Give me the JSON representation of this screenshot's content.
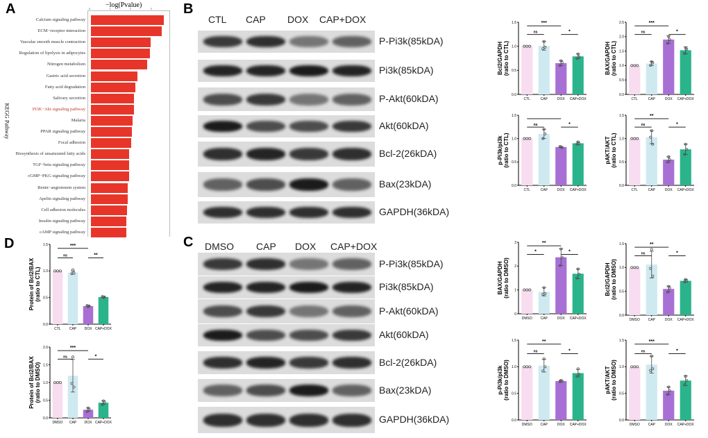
{
  "panels": {
    "a": "A",
    "b": "B",
    "c": "C",
    "d": "D"
  },
  "chart_data": [
    {
      "id": "kegg",
      "type": "bar",
      "orientation": "horizontal",
      "title": "−log(Pvalue)",
      "ylabel": "KEGG Pathway",
      "highlight": "PI3K−Akt signaling pathway",
      "xlim": [
        0,
        3.7
      ],
      "categories": [
        "Calcium signaling pathway",
        "ECM−receptor interaction",
        "Vascular smooth muscle contraction",
        "Regulation of lipolysis in adipocytes",
        "Nitrogen metabolism",
        "Gastric acid secretion",
        "Fatty acid degradation",
        "Salivary secretion",
        "PI3K−Akt signaling pathway",
        "Malaria",
        "PPAR signaling pathway",
        "Focal adhesion",
        "Biosynthesis of unsaturated fatty acids",
        "TGF−beta signaling pathway",
        "cGMP−PKG signaling pathway",
        "Renin−angiotensin system",
        "Apelin signaling pathway",
        "Cell adhesion molecules",
        "Insulin signaling pathway",
        "cAMP signaling pathway"
      ],
      "values": [
        3.6,
        3.5,
        2.95,
        2.9,
        2.79,
        2.3,
        2.19,
        2.13,
        2.11,
        2.07,
        2.01,
        1.98,
        1.89,
        1.88,
        1.87,
        1.81,
        1.81,
        1.79,
        1.75,
        1.74
      ],
      "color": "#e8352a"
    },
    {
      "id": "b1",
      "type": "bar",
      "ylabel": [
        "Bcl2/GAPDH",
        "(ratio to CTL)"
      ],
      "categories": [
        "CTL",
        "CAP",
        "DOX",
        "CAP+DOX"
      ],
      "values": [
        1.0,
        1.01,
        0.65,
        0.79
      ],
      "err": [
        0,
        0.09,
        0.05,
        0.05
      ],
      "points": [
        [
          1,
          1,
          1
        ],
        [
          1.1,
          0.95,
          0.98
        ],
        [
          0.7,
          0.6,
          0.66
        ],
        [
          0.84,
          0.75,
          0.78
        ]
      ],
      "ylim": [
        0,
        1.5
      ],
      "ticks": [
        "0.0",
        "0.5",
        "1.0",
        "1.5"
      ],
      "sig": [
        {
          "pair": [
            0,
            1
          ],
          "label": "ns"
        },
        {
          "pair": [
            0,
            2
          ],
          "label": "***"
        },
        {
          "pair": [
            2,
            3
          ],
          "label": "*"
        }
      ]
    },
    {
      "id": "b2",
      "type": "bar",
      "ylabel": [
        "BAX/GAPDH",
        "(ratio to CTL)"
      ],
      "categories": [
        "CTL",
        "CAP",
        "DOX",
        "CAP+DOX"
      ],
      "values": [
        1.0,
        1.07,
        1.9,
        1.53
      ],
      "err": [
        0,
        0.07,
        0.13,
        0.12
      ],
      "points": [
        [
          1,
          1,
          1
        ],
        [
          1.13,
          1.01,
          1.09
        ],
        [
          2.0,
          1.77,
          1.9
        ],
        [
          1.6,
          1.42,
          1.57
        ]
      ],
      "ylim": [
        0,
        2.5
      ],
      "ticks": [
        "0.0",
        "0.5",
        "1.0",
        "1.5",
        "2.0",
        "2.5"
      ],
      "sig": [
        {
          "pair": [
            0,
            1
          ],
          "label": "ns"
        },
        {
          "pair": [
            0,
            2
          ],
          "label": "***"
        },
        {
          "pair": [
            2,
            3
          ],
          "label": "*"
        }
      ]
    },
    {
      "id": "b3",
      "type": "bar",
      "ylabel": [
        "p-Pi3k/pi3k",
        "(ratio to CTL)"
      ],
      "categories": [
        "CTL",
        "CAP",
        "DOX",
        "CAP+DOX"
      ],
      "values": [
        1.0,
        1.1,
        0.82,
        0.9
      ],
      "err": [
        0,
        0.1,
        0.01,
        0.03
      ],
      "points": [
        [
          1,
          1,
          1
        ],
        [
          1.2,
          1.0,
          1.1
        ],
        [
          0.82,
          0.83,
          0.81
        ],
        [
          0.93,
          0.88,
          0.89
        ]
      ],
      "ylim": [
        0,
        1.5
      ],
      "ticks": [
        "0.0",
        "0.5",
        "1.0",
        "1.5"
      ],
      "sig": [
        {
          "pair": [
            0,
            1
          ],
          "label": "ns"
        },
        {
          "pair": [
            0,
            2
          ],
          "label": ""
        },
        {
          "pair": [
            2,
            3
          ],
          "label": "*"
        }
      ]
    },
    {
      "id": "b4",
      "type": "bar",
      "ylabel": [
        "pAKT/AKT",
        "(ratio to CTL)"
      ],
      "categories": [
        "CTL",
        "CAP",
        "DOX",
        "CAP+DOX"
      ],
      "values": [
        1.0,
        1.03,
        0.55,
        0.77
      ],
      "err": [
        0,
        0.14,
        0.06,
        0.11
      ],
      "points": [
        [
          1,
          1,
          1
        ],
        [
          1.17,
          1.03,
          0.88
        ],
        [
          0.61,
          0.5,
          0.55
        ],
        [
          0.88,
          0.66,
          0.77
        ]
      ],
      "ylim": [
        0,
        1.5
      ],
      "ticks": [
        "0.0",
        "0.5",
        "1.0",
        "1.5"
      ],
      "sig": [
        {
          "pair": [
            0,
            1
          ],
          "label": "ns"
        },
        {
          "pair": [
            0,
            2
          ],
          "label": "**"
        },
        {
          "pair": [
            2,
            3
          ],
          "label": "*"
        }
      ]
    },
    {
      "id": "c1",
      "type": "bar",
      "ylabel": [
        "BAX/GAPDH",
        "(ratio to DMSO)"
      ],
      "categories": [
        "DMSO",
        "CAP",
        "DOX",
        "CAP+DOX"
      ],
      "values": [
        1.0,
        0.92,
        2.37,
        1.68
      ],
      "err": [
        0,
        0.17,
        0.35,
        0.2
      ],
      "points": [
        [
          1,
          1,
          1
        ],
        [
          1.1,
          0.82,
          0.85
        ],
        [
          2.72,
          2.02,
          2.37
        ],
        [
          1.88,
          1.5,
          1.66
        ]
      ],
      "ylim": [
        0,
        3
      ],
      "ticks": [
        "0",
        "1",
        "2",
        "3"
      ],
      "sig": [
        {
          "pair": [
            0,
            1
          ],
          "label": "*"
        },
        {
          "pair": [
            0,
            2
          ],
          "label": "**"
        },
        {
          "pair": [
            2,
            3
          ],
          "label": "*"
        }
      ]
    },
    {
      "id": "c2",
      "type": "bar",
      "ylabel": [
        "Bcl2/GAPDH",
        "(ratio to DMSO)"
      ],
      "categories": [
        "DMSO",
        "CAP",
        "DOX",
        "CAP+DOX"
      ],
      "values": [
        1.0,
        1.06,
        0.55,
        0.72
      ],
      "err": [
        0,
        0.28,
        0.06,
        0.03
      ],
      "points": [
        [
          1,
          1,
          1
        ],
        [
          1.38,
          0.98,
          0.82
        ],
        [
          0.6,
          0.48,
          0.57
        ],
        [
          0.75,
          0.7,
          0.72
        ]
      ],
      "ylim": [
        0,
        1.5
      ],
      "ticks": [
        "0.0",
        "0.5",
        "1.0",
        "1.5"
      ],
      "sig": [
        {
          "pair": [
            0,
            1
          ],
          "label": "ns"
        },
        {
          "pair": [
            0,
            2
          ],
          "label": "**"
        },
        {
          "pair": [
            2,
            3
          ],
          "label": "*"
        }
      ]
    },
    {
      "id": "c3",
      "type": "bar",
      "ylabel": [
        "p-Pi3k/pi3k",
        "(ratio to DMSO)"
      ],
      "categories": [
        "DMSO",
        "CAP",
        "DOX",
        "CAP+DOX"
      ],
      "values": [
        1.0,
        1.02,
        0.73,
        0.88
      ],
      "err": [
        0,
        0.12,
        0.02,
        0.07
      ],
      "points": [
        [
          1,
          1,
          1
        ],
        [
          1.15,
          0.92,
          1.0
        ],
        [
          0.74,
          0.72,
          0.73
        ],
        [
          0.96,
          0.82,
          0.86
        ]
      ],
      "ylim": [
        0,
        1.5
      ],
      "ticks": [
        "0.0",
        "0.5",
        "1.0",
        "1.5"
      ],
      "sig": [
        {
          "pair": [
            0,
            1
          ],
          "label": "ns"
        },
        {
          "pair": [
            0,
            2
          ],
          "label": "**"
        },
        {
          "pair": [
            2,
            3
          ],
          "label": "*"
        }
      ]
    },
    {
      "id": "c4",
      "type": "bar",
      "ylabel": [
        "pAKT/AKT",
        "(ratio to DMSO)"
      ],
      "categories": [
        "DMSO",
        "CAP",
        "DOX",
        "CAP+DOX"
      ],
      "values": [
        1.0,
        1.04,
        0.55,
        0.74
      ],
      "err": [
        0,
        0.16,
        0.07,
        0.09
      ],
      "points": [
        [
          1,
          1,
          1
        ],
        [
          1.2,
          0.93,
          0.96
        ],
        [
          0.62,
          0.48,
          0.55
        ],
        [
          0.82,
          0.66,
          0.74
        ]
      ],
      "ylim": [
        0,
        1.5
      ],
      "ticks": [
        "0.0",
        "0.5",
        "1.0",
        "1.5"
      ],
      "sig": [
        {
          "pair": [
            0,
            1
          ],
          "label": "ns"
        },
        {
          "pair": [
            0,
            2
          ],
          "label": "***"
        },
        {
          "pair": [
            2,
            3
          ],
          "label": "*"
        }
      ]
    },
    {
      "id": "d1",
      "type": "bar",
      "ylabel": [
        "Protein of Bcl2/BAX",
        "(ratio to CTL)"
      ],
      "categories": [
        "CTL",
        "CAP",
        "DOX",
        "CAP+DOX"
      ],
      "values": [
        1.0,
        0.97,
        0.34,
        0.51
      ],
      "err": [
        0,
        0.03,
        0.01,
        0.01
      ],
      "points": [
        [
          1,
          1,
          1
        ],
        [
          1.02,
          0.95,
          0.96
        ],
        [
          0.33,
          0.35,
          0.34
        ],
        [
          0.5,
          0.52,
          0.51
        ]
      ],
      "ylim": [
        0,
        1.5
      ],
      "ticks": [
        "0.0",
        "0.5",
        "1.0",
        "1.5"
      ],
      "sig": [
        {
          "pair": [
            0,
            1
          ],
          "label": "ns"
        },
        {
          "pair": [
            0,
            2
          ],
          "label": "***"
        },
        {
          "pair": [
            2,
            3
          ],
          "label": "**"
        }
      ]
    },
    {
      "id": "d2",
      "type": "bar",
      "ylabel": [
        "Protein of Bcl2/BAX",
        "(ratio to DMSO)"
      ],
      "categories": [
        "DMSO",
        "CAP",
        "DOX",
        "CAP+DOX"
      ],
      "values": [
        1.0,
        1.19,
        0.23,
        0.43
      ],
      "err": [
        0,
        0.46,
        0.05,
        0.05
      ],
      "points": [
        [
          1,
          1,
          1
        ],
        [
          1.72,
          0.97,
          0.87
        ],
        [
          0.28,
          0.18,
          0.24
        ],
        [
          0.48,
          0.37,
          0.45
        ]
      ],
      "ylim": [
        0,
        2.0
      ],
      "ticks": [
        "0.0",
        "0.5",
        "1.0",
        "1.5",
        "2.0"
      ],
      "sig": [
        {
          "pair": [
            0,
            1
          ],
          "label": "ns"
        },
        {
          "pair": [
            0,
            2
          ],
          "label": "***"
        },
        {
          "pair": [
            2,
            3
          ],
          "label": "*"
        }
      ]
    }
  ],
  "group_colors": [
    "#f8dcef",
    "#cfe9f1",
    "#a86fd4",
    "#2bb48b"
  ],
  "blot_b": {
    "lanes": [
      "CTL",
      "CAP",
      "DOX",
      "CAP+DOX"
    ],
    "rows": [
      "P-Pi3k(85kDA)",
      "Pi3k(85kDA)",
      "P-Akt(60kDA)",
      "Akt(60kDA)",
      "Bcl-2(26kDA)",
      "Bax(23kDA)",
      "GAPDH(36kDA)"
    ]
  },
  "blot_c": {
    "lanes": [
      "DMSO",
      "CAP",
      "DOX",
      "CAP+DOX"
    ],
    "rows": [
      "P-Pi3k(85kDA)",
      "Pi3k(85kDA)",
      "P-Akt(60kDA)",
      "Akt(60kDA)",
      "Bcl-2(26kDA)",
      "Bax(23kDA)",
      "GAPDH(36kDA)"
    ]
  }
}
